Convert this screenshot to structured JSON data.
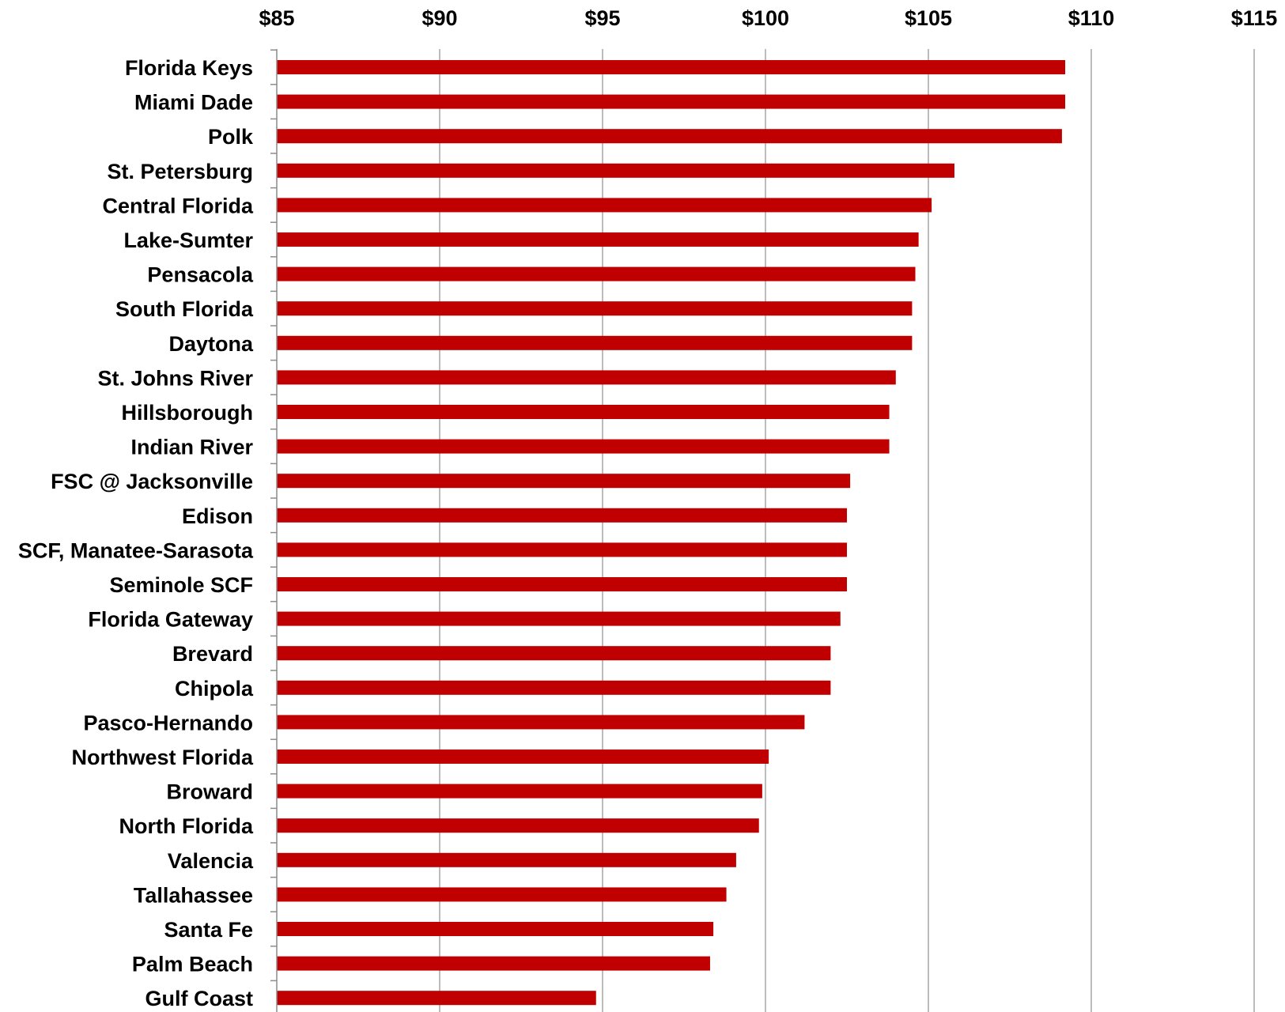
{
  "chart_data": {
    "type": "bar",
    "orientation": "horizontal",
    "categories": [
      "Florida Keys",
      "Miami Dade",
      "Polk",
      "St. Petersburg",
      "Central Florida",
      "Lake-Sumter",
      "Pensacola",
      "South Florida",
      "Daytona",
      "St. Johns River",
      "Hillsborough",
      "Indian River",
      "FSC @ Jacksonville",
      "Edison",
      "SCF, Manatee-Sarasota",
      "Seminole SCF",
      "Florida Gateway",
      "Brevard",
      "Chipola",
      "Pasco-Hernando",
      "Northwest Florida",
      "Broward",
      "North Florida",
      "Valencia",
      "Tallahassee",
      "Santa Fe",
      "Palm Beach",
      "Gulf Coast"
    ],
    "values": [
      109.2,
      109.2,
      109.1,
      105.8,
      105.1,
      104.7,
      104.6,
      104.5,
      104.5,
      104.0,
      103.8,
      103.8,
      102.6,
      102.5,
      102.5,
      102.5,
      102.3,
      102.0,
      102.0,
      101.2,
      100.1,
      99.9,
      99.8,
      99.1,
      98.8,
      98.4,
      98.3,
      94.8
    ],
    "xlim": [
      85,
      115
    ],
    "xticks": [
      85,
      90,
      95,
      100,
      105,
      110,
      115
    ],
    "xtick_labels": [
      "$85",
      "$90",
      "$95",
      "$100",
      "$105",
      "$110",
      "$115"
    ],
    "title": "",
    "xlabel": "",
    "ylabel": "",
    "grid": true,
    "legend": "none",
    "bar_color": "#c00000",
    "grid_color": "#a6a6a6"
  }
}
